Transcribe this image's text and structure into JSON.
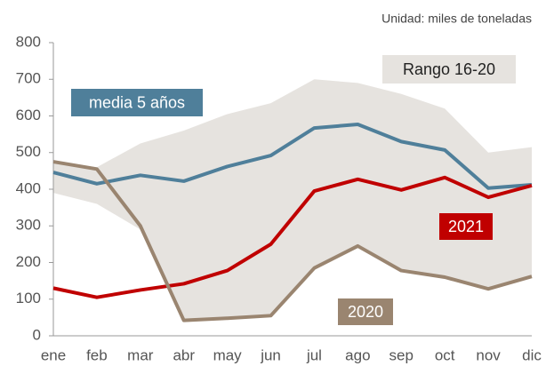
{
  "chart_data": {
    "type": "line",
    "unit_label": "Unidad: miles de toneladas",
    "categories": [
      "ene",
      "feb",
      "mar",
      "abr",
      "may",
      "jun",
      "jul",
      "ago",
      "sep",
      "oct",
      "nov",
      "dic"
    ],
    "ylim": [
      0,
      800
    ],
    "yticks": [
      0,
      100,
      200,
      300,
      400,
      500,
      600,
      700,
      800
    ],
    "range": {
      "name": "Rango 16-20",
      "color": "#e6e3df",
      "low": [
        390,
        360,
        290,
        40,
        48,
        55,
        180,
        245,
        175,
        160,
        128,
        162
      ],
      "high": [
        475,
        460,
        525,
        560,
        605,
        635,
        700,
        690,
        660,
        620,
        500,
        515
      ]
    },
    "series": [
      {
        "name": "media 5 años",
        "color": "#4f7f9a",
        "values": [
          446,
          415,
          438,
          422,
          462,
          492,
          567,
          577,
          530,
          507,
          403,
          412
        ]
      },
      {
        "name": "2021",
        "color": "#c00000",
        "values": [
          130,
          105,
          125,
          142,
          178,
          250,
          395,
          427,
          398,
          432,
          378,
          410
        ]
      },
      {
        "name": "2020",
        "color": "#9a8570",
        "values": [
          475,
          455,
          300,
          42,
          48,
          55,
          185,
          245,
          178,
          160,
          128,
          162
        ]
      }
    ]
  }
}
